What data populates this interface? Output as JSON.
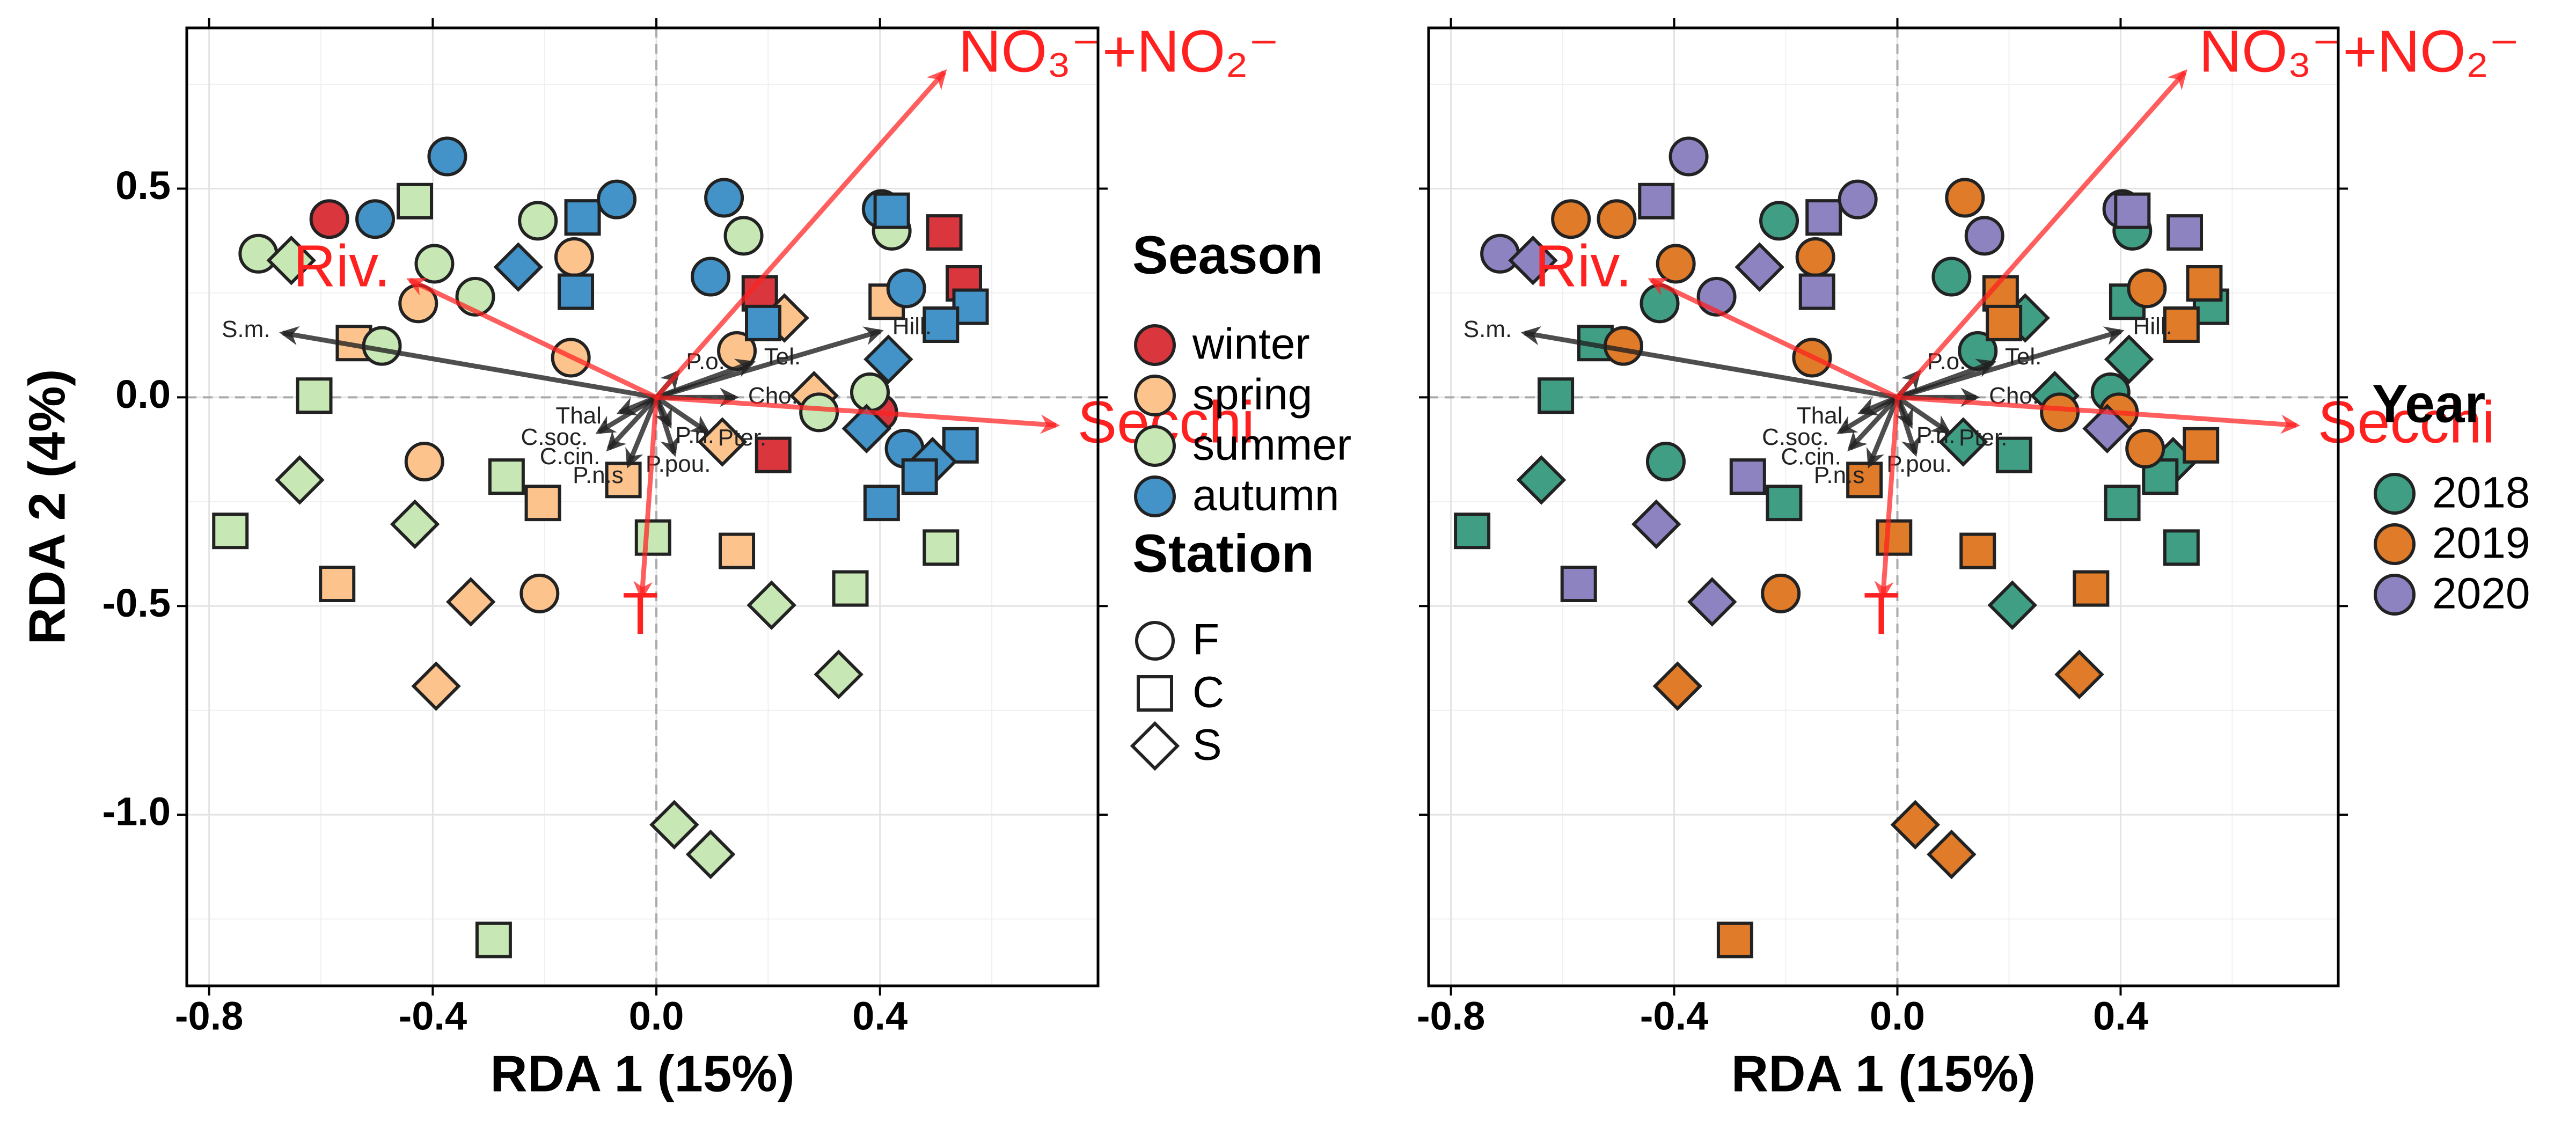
{
  "chart_data": [
    {
      "type": "scatter",
      "x_label": "RDA 1 (15%)",
      "y_label": "RDA 2 (4%)",
      "show_y_tick_labels": true,
      "xlim": [
        -0.84,
        0.79
      ],
      "ylim": [
        -1.41,
        0.885
      ],
      "xticks": [
        -0.8,
        -0.4,
        {
          "value": 0,
          "label": "0.0"
        },
        0.4
      ],
      "yticks": [
        {
          "value": -1,
          "label": "-1.0"
        },
        -0.5,
        {
          "value": 0,
          "label": "0.0"
        },
        0.5
      ],
      "x_minor_ticks": [
        -0.6,
        -0.2,
        0.2,
        0.6
      ],
      "y_minor_ticks": [
        -1.25,
        -0.75,
        -0.25,
        0.25,
        0.75
      ],
      "grid": true,
      "zero_lines": true,
      "legend_title": "Season",
      "markers": {
        "F": "circle",
        "C": "square",
        "S": "diamond"
      },
      "shape_legend": {
        "title": "Station",
        "names": [
          "F",
          "C",
          "S"
        ]
      },
      "series": [
        {
          "name": "winter",
          "color": "#d9363e",
          "x": [
            -0.585,
            0.185,
            0.209,
            0.515,
            0.55,
            0.397
          ],
          "y": [
            0.427,
            0.249,
            -0.138,
            0.395,
            0.273,
            -0.036
          ],
          "station": [
            "F",
            "C",
            "C",
            "C",
            "C",
            "F"
          ]
        },
        {
          "name": "spring",
          "color": "#fdc38d",
          "x": [
            -0.426,
            -0.147,
            -0.153,
            -0.541,
            -0.415,
            -0.571,
            -0.332,
            -0.203,
            -0.209,
            -0.394,
            -0.059,
            0.144,
            0.229,
            0.144,
            0.118,
            0.282,
            0.412
          ],
          "y": [
            0.225,
            0.336,
            0.095,
            0.13,
            -0.154,
            -0.447,
            -0.49,
            -0.253,
            -0.47,
            -0.692,
            -0.198,
            -0.368,
            0.19,
            0.111,
            -0.107,
            0.004,
            0.229
          ],
          "station": [
            "F",
            "F",
            "F",
            "C",
            "F",
            "C",
            "S",
            "C",
            "F",
            "S",
            "C",
            "C",
            "S",
            "F",
            "S",
            "S",
            "C"
          ]
        },
        {
          "name": "summer",
          "color": "#c7e7b5",
          "x": [
            -0.712,
            -0.653,
            -0.432,
            -0.397,
            -0.324,
            -0.212,
            -0.491,
            -0.612,
            -0.638,
            -0.762,
            -0.432,
            -0.268,
            -0.006,
            0.206,
            0.326,
            0.347,
            0.509,
            0.032,
            0.097,
            -0.291,
            0.156,
            0.291,
            0.421,
            0.382
          ],
          "y": [
            0.344,
            0.328,
            0.47,
            0.32,
            0.241,
            0.423,
            0.123,
            0.004,
            -0.198,
            -0.32,
            -0.304,
            -0.19,
            -0.336,
            -0.498,
            -0.664,
            -0.458,
            -0.36,
            -1.024,
            -1.095,
            -1.3,
            0.387,
            -0.036,
            0.399,
            0.012
          ],
          "station": [
            "F",
            "S",
            "C",
            "F",
            "F",
            "F",
            "F",
            "C",
            "S",
            "C",
            "S",
            "C",
            "C",
            "S",
            "S",
            "C",
            "C",
            "S",
            "S",
            "C",
            "F",
            "F",
            "F",
            "F"
          ]
        },
        {
          "name": "autumn",
          "color": "#4393c8",
          "x": [
            -0.503,
            -0.374,
            -0.247,
            -0.132,
            -0.144,
            -0.071,
            0.121,
            0.097,
            0.191,
            0.403,
            0.421,
            0.447,
            0.562,
            0.509,
            0.415,
            0.376,
            0.444,
            0.544,
            0.494,
            0.471,
            0.403
          ],
          "y": [
            0.427,
            0.577,
            0.312,
            0.431,
            0.253,
            0.474,
            0.478,
            0.289,
            0.178,
            0.451,
            0.447,
            0.261,
            0.217,
            0.174,
            0.091,
            -0.075,
            -0.123,
            -0.115,
            -0.154,
            -0.19,
            -0.253
          ],
          "station": [
            "F",
            "F",
            "S",
            "C",
            "C",
            "F",
            "F",
            "F",
            "C",
            "F",
            "C",
            "F",
            "C",
            "C",
            "S",
            "S",
            "F",
            "C",
            "S",
            "C",
            "C"
          ]
        }
      ],
      "env_vectors": {
        "color": "#ff2020",
        "names": [
          "NO₃⁻+NO₂⁻",
          "Riv.",
          "Secchi",
          "T"
        ],
        "x": [
          0.515,
          -0.441,
          0.715,
          -0.026
        ],
        "y": [
          0.779,
          0.281,
          -0.067,
          -0.478
        ]
      },
      "species_vectors": {
        "color": "#222222",
        "names": [
          "S.m.",
          "Hill.",
          "Tel.",
          "P.o.",
          "Thal.",
          "Cho.",
          "C.soc.",
          "C.cin.",
          "Pter.",
          "P.pou.",
          "P.n.s",
          "P.n."
        ],
        "x": [
          -0.668,
          0.4,
          0.171,
          0.038,
          -0.065,
          0.141,
          -0.103,
          -0.085,
          0.091,
          0.032,
          -0.05,
          0.024
        ],
        "y": [
          0.154,
          0.158,
          0.083,
          0.059,
          -0.036,
          0,
          -0.083,
          -0.123,
          -0.083,
          -0.134,
          -0.162,
          -0.067
        ]
      }
    },
    {
      "type": "scatter",
      "x_label": "RDA 1 (15%)",
      "show_y_tick_labels": false,
      "xlim": [
        -0.84,
        0.79
      ],
      "ylim": [
        -1.41,
        0.885
      ],
      "xticks": [
        -0.8,
        -0.4,
        {
          "value": 0,
          "label": "0.0"
        },
        0.4
      ],
      "yticks": [
        -1,
        -0.5,
        0,
        0.5
      ],
      "x_minor_ticks": [
        -0.6,
        -0.2,
        0.2,
        0.6
      ],
      "y_minor_ticks": [
        -1.25,
        -0.75,
        -0.25,
        0.25,
        0.75
      ],
      "grid": true,
      "zero_lines": true,
      "legend_title": "Year",
      "markers": {
        "F": "circle",
        "C": "square",
        "S": "diamond"
      },
      "series": [
        {
          "name": "2018",
          "color": "#3f9e83",
          "x": [
            -0.426,
            -0.212,
            -0.541,
            -0.612,
            -0.638,
            -0.762,
            -0.415,
            -0.203,
            0.206,
            0.509,
            0.097,
            0.229,
            0.144,
            0.209,
            0.118,
            0.282,
            0.421,
            0.412,
            0.562,
            0.415,
            0.382,
            0.494,
            0.471,
            0.403
          ],
          "y": [
            0.225,
            0.423,
            0.13,
            0.004,
            -0.198,
            -0.32,
            -0.154,
            -0.253,
            -0.498,
            -0.36,
            0.289,
            0.19,
            0.111,
            -0.138,
            -0.107,
            0.004,
            0.399,
            0.229,
            0.217,
            0.091,
            0.012,
            -0.154,
            -0.19,
            -0.253
          ],
          "station": [
            "F",
            "F",
            "C",
            "C",
            "S",
            "C",
            "F",
            "C",
            "S",
            "C",
            "F",
            "S",
            "F",
            "C",
            "S",
            "S",
            "F",
            "C",
            "C",
            "S",
            "F",
            "S",
            "C",
            "C"
          ]
        },
        {
          "name": "2019",
          "color": "#e07b2a",
          "x": [
            -0.585,
            -0.503,
            -0.397,
            -0.147,
            -0.153,
            -0.491,
            -0.209,
            -0.394,
            -0.059,
            -0.006,
            0.144,
            0.326,
            0.347,
            0.032,
            0.097,
            -0.291,
            0.121,
            0.185,
            0.191,
            0.291,
            0.447,
            0.55,
            0.509,
            0.397,
            0.444,
            0.544
          ],
          "y": [
            0.427,
            0.427,
            0.32,
            0.336,
            0.095,
            0.123,
            -0.47,
            -0.692,
            -0.198,
            -0.336,
            -0.368,
            -0.664,
            -0.458,
            -1.024,
            -1.095,
            -1.3,
            0.478,
            0.249,
            0.178,
            -0.036,
            0.261,
            0.273,
            0.174,
            -0.036,
            -0.123,
            -0.115
          ],
          "station": [
            "F",
            "F",
            "F",
            "F",
            "F",
            "F",
            "F",
            "S",
            "C",
            "C",
            "C",
            "S",
            "C",
            "S",
            "S",
            "C",
            "F",
            "C",
            "C",
            "F",
            "F",
            "C",
            "C",
            "F",
            "F",
            "C"
          ]
        },
        {
          "name": "2020",
          "color": "#8d83c0",
          "x": [
            -0.712,
            -0.653,
            -0.432,
            -0.374,
            -0.324,
            -0.247,
            -0.132,
            -0.144,
            -0.071,
            -0.432,
            -0.571,
            -0.332,
            -0.268,
            0.156,
            0.403,
            0.421,
            0.515,
            0.376
          ],
          "y": [
            0.344,
            0.328,
            0.47,
            0.577,
            0.241,
            0.312,
            0.431,
            0.253,
            0.474,
            -0.304,
            -0.447,
            -0.49,
            -0.19,
            0.387,
            0.451,
            0.447,
            0.395,
            -0.075
          ],
          "station": [
            "F",
            "S",
            "C",
            "F",
            "F",
            "S",
            "C",
            "C",
            "F",
            "S",
            "C",
            "S",
            "C",
            "F",
            "F",
            "C",
            "C",
            "S"
          ]
        }
      ],
      "env_vectors": {
        "color": "#ff2020",
        "names": [
          "NO₃⁻+NO₂⁻",
          "Riv.",
          "Secchi",
          "T"
        ],
        "x": [
          0.515,
          -0.441,
          0.715,
          -0.026
        ],
        "y": [
          0.779,
          0.281,
          -0.067,
          -0.478
        ]
      },
      "species_vectors": {
        "color": "#222222",
        "names": [
          "S.m.",
          "Hill.",
          "Tel.",
          "P.o.",
          "Thal.",
          "Cho.",
          "C.soc.",
          "C.cin.",
          "Pter.",
          "P.pou.",
          "P.n.s",
          "P.n."
        ],
        "x": [
          -0.668,
          0.4,
          0.171,
          0.038,
          -0.065,
          0.141,
          -0.103,
          -0.085,
          0.091,
          0.032,
          -0.05,
          0.024
        ],
        "y": [
          0.154,
          0.158,
          0.083,
          0.059,
          -0.036,
          0,
          -0.083,
          -0.123,
          -0.083,
          -0.134,
          -0.162,
          -0.067
        ]
      }
    }
  ]
}
